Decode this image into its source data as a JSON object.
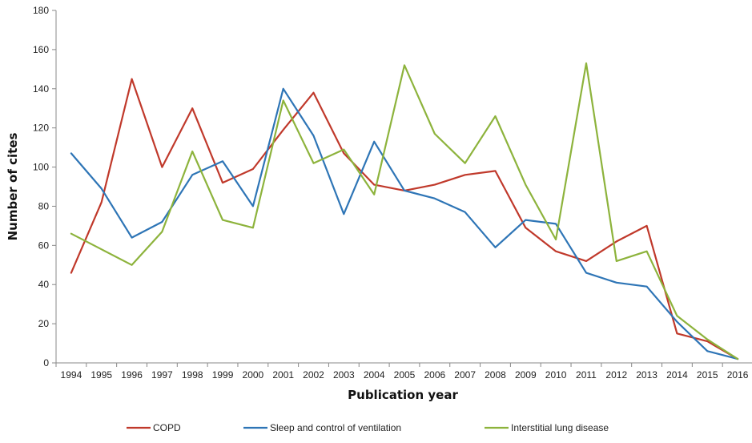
{
  "chart_data": {
    "type": "line",
    "title": "",
    "xlabel": "Publication year",
    "ylabel": "Number of cites",
    "ylim": [
      0,
      180
    ],
    "yticks": [
      "0",
      "20",
      "40",
      "60",
      "80",
      "100",
      "120",
      "140",
      "160",
      "180"
    ],
    "grid": false,
    "legend_position": "bottom",
    "categories": [
      "1994",
      "1995",
      "1996",
      "1997",
      "1998",
      "1999",
      "2000",
      "2001",
      "2002",
      "2003",
      "2004",
      "2005",
      "2006",
      "2007",
      "2008",
      "2009",
      "2010",
      "2011",
      "2012",
      "2013",
      "2014",
      "2015",
      "2016"
    ],
    "series": [
      {
        "name": "COPD",
        "color": "#c0392b",
        "values": [
          46,
          82,
          145,
          100,
          130,
          92,
          99,
          119,
          138,
          107,
          91,
          88,
          91,
          96,
          98,
          69,
          57,
          52,
          62,
          70,
          15,
          11,
          2
        ]
      },
      {
        "name": "Sleep and control of ventilation",
        "color": "#2e75b6",
        "values": [
          107,
          89,
          64,
          72,
          96,
          103,
          80,
          140,
          116,
          76,
          113,
          88,
          84,
          77,
          59,
          73,
          71,
          46,
          41,
          39,
          21,
          6,
          2
        ]
      },
      {
        "name": "Interstitial lung disease",
        "color": "#8db33c",
        "values": [
          66,
          58,
          50,
          67,
          108,
          73,
          69,
          134,
          102,
          109,
          86,
          152,
          117,
          102,
          126,
          91,
          63,
          153,
          52,
          57,
          24,
          12,
          2
        ]
      }
    ]
  }
}
